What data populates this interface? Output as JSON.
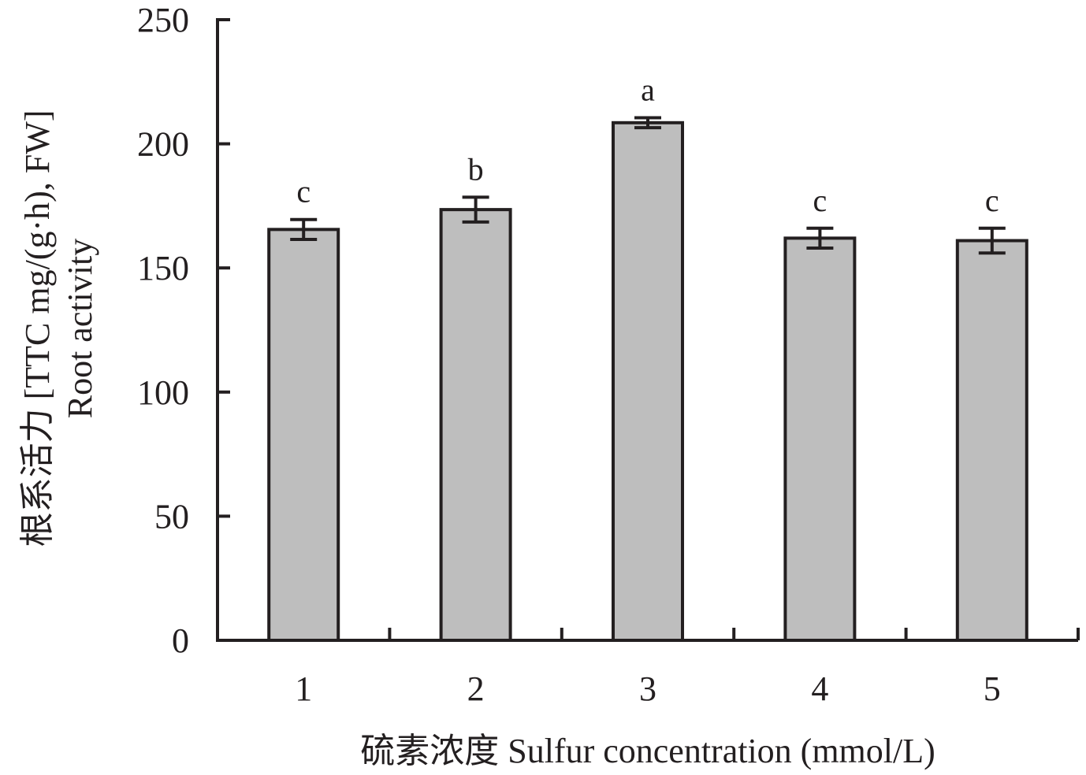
{
  "colors": {
    "bar_fill": "#bebebe",
    "ink": "#231f20"
  },
  "chart_data": {
    "type": "bar",
    "title": "",
    "xlabel": "硫素浓度 Sulfur concentration (mmol/L)",
    "ylabel": [
      "根系活力 [TTC mg/(g·h), FW]",
      "Root activity"
    ],
    "categories": [
      "1",
      "2",
      "3",
      "4",
      "5"
    ],
    "values": [
      165.5,
      173.5,
      208.5,
      162,
      161
    ],
    "errors": [
      4,
      5,
      2,
      4,
      5
    ],
    "significance": [
      "c",
      "b",
      "a",
      "c",
      "c"
    ],
    "ylim": [
      0,
      250
    ],
    "yticks": [
      0,
      50,
      100,
      150,
      200,
      250
    ],
    "grid": false,
    "legend": "none"
  }
}
